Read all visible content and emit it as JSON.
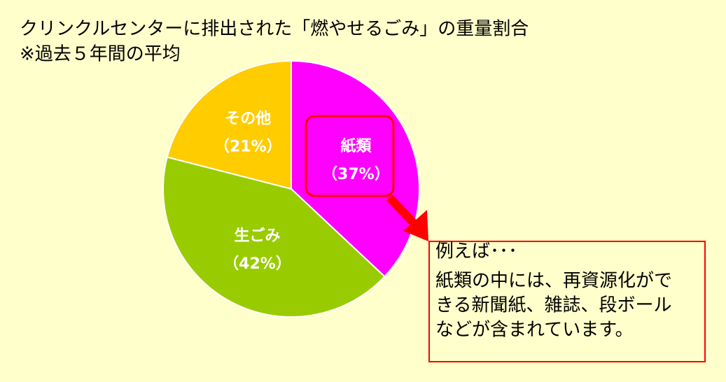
{
  "chart_data": {
    "type": "pie",
    "title": "クリンクルセンターに排出された「燃やせるごみ」の重量割合",
    "subtitle": "※過去５年間の平均",
    "categories": [
      "紙類",
      "生ごみ",
      "その他"
    ],
    "values": [
      37,
      42,
      21
    ],
    "value_labels": [
      "（37%）",
      "（42%）",
      "（21%）"
    ],
    "colors": [
      "#ff00ff",
      "#99cc00",
      "#ffcc00"
    ],
    "callout": {
      "heading": "例えば･･･",
      "lines": [
        "紙類の中には、再資源化がで",
        "きる新聞紙、雑誌、段ボール",
        "などが含まれています。"
      ]
    }
  }
}
